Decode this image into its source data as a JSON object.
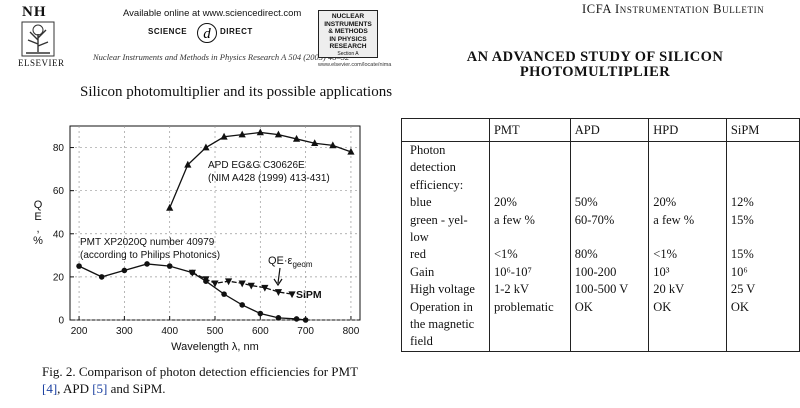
{
  "left_header": {
    "nh": "NH",
    "publisher": "ELSEVIER",
    "available_online": "Available online at www.sciencedirect.com",
    "sd_left": "SCIENCE",
    "sd_mark": "d",
    "sd_right": "DIRECT",
    "journal_ref": "Nuclear Instruments and Methods in Physics Research A 504 (2003) 48–52",
    "nim_lines": [
      "NUCLEAR",
      "INSTRUMENTS",
      "& METHODS",
      "IN PHYSICS",
      "RESEARCH"
    ],
    "nim_section": "Section A",
    "nim_url": "www.elsevier.com/locate/nima",
    "paper_title": "Silicon photomultiplier and its possible applications"
  },
  "right_header": {
    "bulletin": "ICFA Instrumentation Bulletin",
    "title_line1": "AN ADVANCED STUDY OF SILICON",
    "title_line2": "PHOTOMULTIPLIER"
  },
  "caption": {
    "prefix": "Fig. 2. Comparison of photon detection efficiencies for PMT",
    "ref1": "[4]",
    "mid": ", APD ",
    "ref2": "[5]",
    "suffix": " and SiPM."
  },
  "chart_data": {
    "type": "line",
    "xlabel": "Wavelength λ, nm",
    "ylabel_lines": [
      "Q",
      "E",
      ",",
      "%"
    ],
    "xlim": [
      180,
      820
    ],
    "ylim": [
      0,
      90
    ],
    "xticks": [
      200,
      300,
      400,
      500,
      600,
      700,
      800
    ],
    "yticks": [
      0,
      20,
      40,
      60,
      80
    ],
    "annotations": {
      "apd_line1": "APD EG&G C30626E",
      "apd_line2": "(NIM A428 (1999) 413-431)",
      "pmt_line1": "PMT XP2020Q number 40979",
      "pmt_line2": "(according to Philips Photonics)",
      "qe": "QE·ε",
      "qe_sub": "geom",
      "sipm": "SiPM"
    },
    "series": [
      {
        "name": "APD",
        "marker": "triangle-up",
        "x": [
          400,
          440,
          480,
          520,
          560,
          600,
          640,
          680,
          720,
          760,
          800
        ],
        "y": [
          52,
          72,
          80,
          85,
          86,
          87,
          86,
          84,
          82,
          81,
          78
        ]
      },
      {
        "name": "PMT",
        "marker": "circle",
        "x": [
          200,
          250,
          300,
          350,
          400,
          450,
          480,
          520,
          560,
          600,
          640,
          680,
          700
        ],
        "y": [
          25,
          20,
          23,
          26,
          25,
          22,
          18,
          12,
          7,
          3,
          1,
          0.5,
          0
        ]
      },
      {
        "name": "SiPM",
        "marker": "triangle-down",
        "x": [
          450,
          480,
          500,
          530,
          560,
          580,
          610,
          640,
          670
        ],
        "y": [
          22,
          19,
          17,
          18,
          17,
          16,
          15,
          13,
          12
        ]
      }
    ]
  },
  "table": {
    "headers": [
      "",
      "PMT",
      "APD",
      "HPD",
      "SiPM"
    ],
    "label_lines": [
      "Photon",
      "detection",
      "efficiency:",
      "blue",
      "green - yel-",
      "low",
      "red",
      "Gain",
      "High voltage",
      "Operation in",
      "the magnetic",
      "field"
    ],
    "pmt_lines": [
      "",
      "",
      "",
      "20%",
      "a few %",
      "",
      "<1%",
      "10⁶-10⁷",
      "1-2 kV",
      "problematic",
      "",
      ""
    ],
    "apd_lines": [
      "",
      "",
      "",
      "50%",
      "60-70%",
      "",
      "80%",
      "100-200",
      "100-500 V",
      "OK",
      "",
      ""
    ],
    "hpd_lines": [
      "",
      "",
      "",
      "20%",
      "a few %",
      "",
      "<1%",
      "10³",
      "20 kV",
      "OK",
      "",
      ""
    ],
    "sipm_lines": [
      "",
      "",
      "",
      "12%",
      "15%",
      "",
      "15%",
      "10⁶",
      "25 V",
      "OK",
      "",
      ""
    ]
  }
}
